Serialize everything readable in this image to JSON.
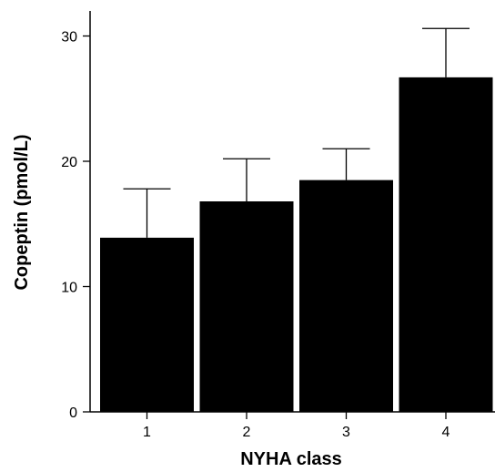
{
  "chart_data": {
    "type": "bar",
    "title": "",
    "xlabel": "NYHA class",
    "ylabel": "Copeptin (pmol/L)",
    "categories": [
      "1",
      "2",
      "3",
      "4"
    ],
    "values": [
      13.9,
      16.8,
      18.5,
      26.7
    ],
    "error_upper": [
      17.8,
      20.2,
      21.0,
      30.6
    ],
    "ylim": [
      0,
      32
    ],
    "yticks": [
      0,
      10,
      20,
      30
    ],
    "grid": false,
    "legend": "none",
    "bar_color": "#000000"
  }
}
